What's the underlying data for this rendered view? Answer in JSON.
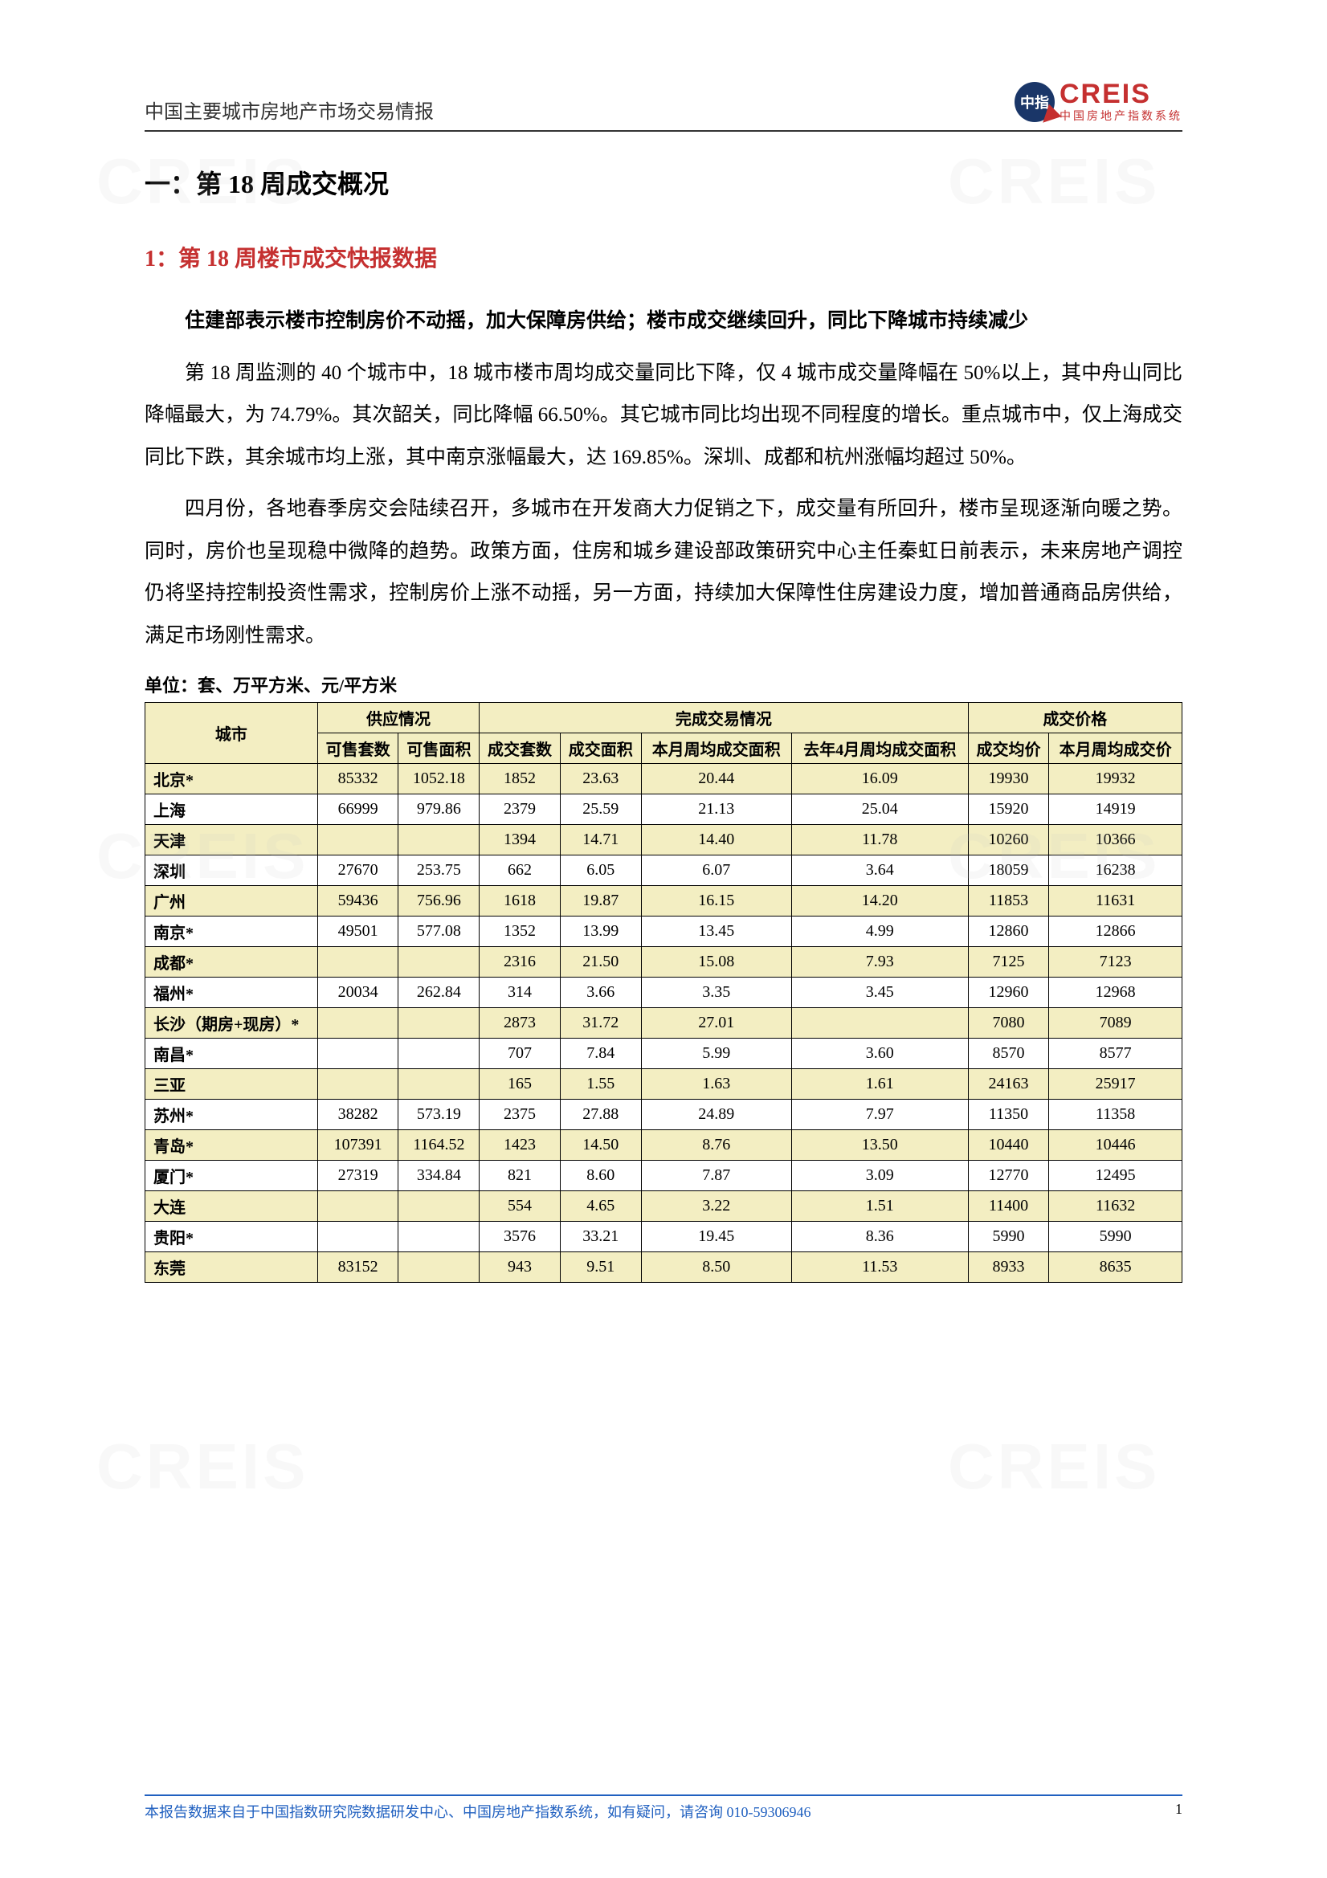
{
  "header": {
    "title": "中国主要城市房地产市场交易情报",
    "logo_badge": "中指",
    "logo_main": "CREIS",
    "logo_sub": "中国房地产指数系统"
  },
  "headings": {
    "h1": "一：第 18 周成交概况",
    "h2": "1：第 18 周楼市成交快报数据"
  },
  "lead": "住建部表示楼市控制房价不动摇，加大保障房供给；楼市成交继续回升，同比下降城市持续减少",
  "para1": "第 18 周监测的 40 个城市中，18 城市楼市周均成交量同比下降，仅 4 城市成交量降幅在 50%以上，其中舟山同比降幅最大，为 74.79%。其次韶关，同比降幅 66.50%。其它城市同比均出现不同程度的增长。重点城市中，仅上海成交同比下跌，其余城市均上涨，其中南京涨幅最大，达 169.85%。深圳、成都和杭州涨幅均超过 50%。",
  "para2": "四月份，各地春季房交会陆续召开，多城市在开发商大力促销之下，成交量有所回升，楼市呈现逐渐向暖之势。同时，房价也呈现稳中微降的趋势。政策方面，住房和城乡建设部政策研究中心主任秦虹日前表示，未来房地产调控仍将坚持控制投资性需求，控制房价上涨不动摇，另一方面，持续加大保障性住房建设力度，增加普通商品房供给，满足市场刚性需求。",
  "unit_line": "单位：套、万平方米、元/平方米",
  "table": {
    "group_headers": [
      "城市",
      "供应情况",
      "完成交易情况",
      "成交价格"
    ],
    "sub_headers": [
      "可售套数",
      "可售面积",
      "成交套数",
      "成交面积",
      "本月周均成交面积",
      "去年4月周均成交面积",
      "成交均价",
      "本月周均成交价"
    ],
    "rows": [
      {
        "city": "北京*",
        "alt": "y",
        "d": [
          "85332",
          "1052.18",
          "1852",
          "23.63",
          "20.44",
          "16.09",
          "19930",
          "19932"
        ]
      },
      {
        "city": "上海",
        "alt": "w",
        "d": [
          "66999",
          "979.86",
          "2379",
          "25.59",
          "21.13",
          "25.04",
          "15920",
          "14919"
        ]
      },
      {
        "city": "天津",
        "alt": "y",
        "d": [
          "",
          "",
          "1394",
          "14.71",
          "14.40",
          "11.78",
          "10260",
          "10366"
        ]
      },
      {
        "city": "深圳",
        "alt": "w",
        "d": [
          "27670",
          "253.75",
          "662",
          "6.05",
          "6.07",
          "3.64",
          "18059",
          "16238"
        ]
      },
      {
        "city": "广州",
        "alt": "y",
        "d": [
          "59436",
          "756.96",
          "1618",
          "19.87",
          "16.15",
          "14.20",
          "11853",
          "11631"
        ]
      },
      {
        "city": "南京*",
        "alt": "w",
        "d": [
          "49501",
          "577.08",
          "1352",
          "13.99",
          "13.45",
          "4.99",
          "12860",
          "12866"
        ]
      },
      {
        "city": "成都*",
        "alt": "y",
        "d": [
          "",
          "",
          "2316",
          "21.50",
          "15.08",
          "7.93",
          "7125",
          "7123"
        ]
      },
      {
        "city": "福州*",
        "alt": "w",
        "d": [
          "20034",
          "262.84",
          "314",
          "3.66",
          "3.35",
          "3.45",
          "12960",
          "12968"
        ]
      },
      {
        "city": "长沙（期房+现房）*",
        "alt": "y",
        "d": [
          "",
          "",
          "2873",
          "31.72",
          "27.01",
          "",
          "7080",
          "7089"
        ]
      },
      {
        "city": "南昌*",
        "alt": "w",
        "d": [
          "",
          "",
          "707",
          "7.84",
          "5.99",
          "3.60",
          "8570",
          "8577"
        ]
      },
      {
        "city": "三亚",
        "alt": "y",
        "d": [
          "",
          "",
          "165",
          "1.55",
          "1.63",
          "1.61",
          "24163",
          "25917"
        ]
      },
      {
        "city": "苏州*",
        "alt": "w",
        "d": [
          "38282",
          "573.19",
          "2375",
          "27.88",
          "24.89",
          "7.97",
          "11350",
          "11358"
        ]
      },
      {
        "city": "青岛*",
        "alt": "y",
        "d": [
          "107391",
          "1164.52",
          "1423",
          "14.50",
          "8.76",
          "13.50",
          "10440",
          "10446"
        ]
      },
      {
        "city": "厦门*",
        "alt": "w",
        "d": [
          "27319",
          "334.84",
          "821",
          "8.60",
          "7.87",
          "3.09",
          "12770",
          "12495"
        ]
      },
      {
        "city": "大连",
        "alt": "y",
        "d": [
          "",
          "",
          "554",
          "4.65",
          "3.22",
          "1.51",
          "11400",
          "11632"
        ]
      },
      {
        "city": "贵阳*",
        "alt": "w",
        "d": [
          "",
          "",
          "3576",
          "33.21",
          "19.45",
          "8.36",
          "5990",
          "5990"
        ]
      },
      {
        "city": "东莞",
        "alt": "y",
        "d": [
          "83152",
          "",
          "943",
          "9.51",
          "8.50",
          "11.53",
          "8933",
          "8635"
        ]
      }
    ]
  },
  "footer": {
    "text": "本报告数据来自于中国指数研究院数据研发中心、中国房地产指数系统，如有疑问，请咨询 010-59306946",
    "page": "1"
  },
  "watermarks": [
    "CREIS",
    "CREIS",
    "CREIS",
    "CREIS",
    "CREIS",
    "CREIS"
  ],
  "wm_pos": [
    {
      "t": 180,
      "l": 120
    },
    {
      "t": 180,
      "l": 1180
    },
    {
      "t": 1020,
      "l": 120
    },
    {
      "t": 1020,
      "l": 1180
    },
    {
      "t": 1780,
      "l": 120
    },
    {
      "t": 1780,
      "l": 1180
    }
  ]
}
